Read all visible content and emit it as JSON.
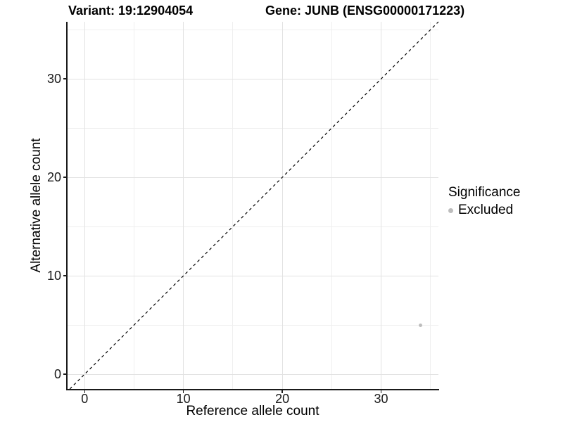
{
  "header": {
    "title_left": "Variant: 19:12904054",
    "title_right": "Gene: JUNB (ENSG00000171223)"
  },
  "chart_data": {
    "type": "scatter",
    "titles": [
      "Variant: 19:12904054",
      "Gene: JUNB (ENSG00000171223)"
    ],
    "xlabel": "Reference allele count",
    "ylabel": "Alternative allele count",
    "xlim": [
      -1.8,
      35.8
    ],
    "ylim": [
      -1.5,
      35.8
    ],
    "x_ticks": [
      0,
      10,
      20,
      30
    ],
    "y_ticks": [
      0,
      10,
      20,
      30
    ],
    "x_minor_ticks": [
      5,
      15,
      25,
      35
    ],
    "y_minor_ticks": [
      5,
      15,
      25,
      35
    ],
    "grid": "major and minor, light gray on white",
    "reference_line": {
      "equation": "y = x",
      "style": "dashed",
      "color": "#000000"
    },
    "series": [
      {
        "name": "Excluded",
        "color": "#bdbdbd",
        "points": [
          [
            34,
            5
          ]
        ]
      }
    ],
    "legend": {
      "title": "Significance",
      "position": "right",
      "entries": [
        {
          "label": "Excluded",
          "color": "#bdbdbd"
        }
      ]
    }
  },
  "colors": {
    "background": "#ffffff",
    "axis": "#1a1a1a",
    "text": "#000000",
    "grid_major": "#e2e2e2",
    "grid_minor": "#efefef",
    "point": "#bdbdbd"
  }
}
